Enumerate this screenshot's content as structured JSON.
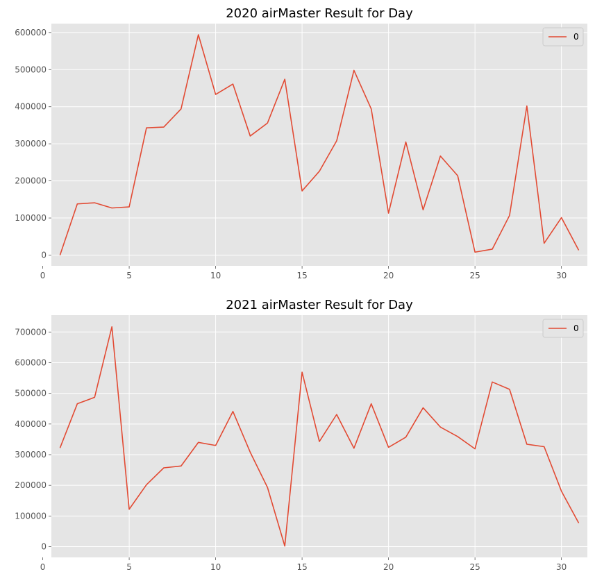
{
  "colors": {
    "series": "#E24A33",
    "plot_background": "#E5E5E5",
    "grid": "#FFFFFF"
  },
  "chart_data": [
    {
      "type": "line",
      "title": "2020 airMaster Result for Day",
      "xlabel": "",
      "ylabel": "",
      "xlim": [
        0.5,
        31.5
      ],
      "ylim": [
        -29000,
        624000
      ],
      "x_ticks": [
        0,
        5,
        10,
        15,
        20,
        25,
        30
      ],
      "y_ticks": [
        0,
        100000,
        200000,
        300000,
        400000,
        500000,
        600000
      ],
      "grid": true,
      "legend": {
        "position": "top-right",
        "entries": [
          "0"
        ]
      },
      "x": [
        1,
        2,
        3,
        4,
        5,
        6,
        7,
        8,
        9,
        10,
        11,
        12,
        13,
        14,
        15,
        16,
        17,
        18,
        19,
        20,
        21,
        22,
        23,
        24,
        25,
        26,
        27,
        28,
        29,
        30,
        31
      ],
      "series": [
        {
          "name": "0",
          "values": [
            0,
            138000,
            141000,
            127000,
            130000,
            343000,
            345000,
            394000,
            594000,
            433000,
            461000,
            321000,
            356000,
            474000,
            173000,
            226000,
            308000,
            498000,
            394000,
            113000,
            305000,
            122000,
            267000,
            214000,
            8000,
            16000,
            107000,
            402000,
            32000,
            101000,
            13000
          ]
        }
      ]
    },
    {
      "type": "line",
      "title": "2021 airMaster Result for Day",
      "xlabel": "",
      "ylabel": "",
      "xlim": [
        0.5,
        31.5
      ],
      "ylim": [
        -35000,
        755000
      ],
      "x_ticks": [
        0,
        5,
        10,
        15,
        20,
        25,
        30
      ],
      "y_ticks": [
        0,
        100000,
        200000,
        300000,
        400000,
        500000,
        600000,
        700000
      ],
      "grid": true,
      "legend": {
        "position": "top-right",
        "entries": [
          "0"
        ]
      },
      "x": [
        1,
        2,
        3,
        4,
        5,
        6,
        7,
        8,
        9,
        10,
        11,
        12,
        13,
        14,
        15,
        16,
        17,
        18,
        19,
        20,
        21,
        22,
        23,
        24,
        25,
        26,
        27,
        28,
        29,
        30,
        31
      ],
      "series": [
        {
          "name": "0",
          "values": [
            322000,
            466000,
            487000,
            717000,
            122000,
            202000,
            257000,
            263000,
            340000,
            330000,
            441000,
            308000,
            193000,
            2000,
            569000,
            343000,
            431000,
            321000,
            466000,
            324000,
            357000,
            453000,
            390000,
            359000,
            319000,
            537000,
            513000,
            334000,
            326000,
            181000,
            77000
          ]
        }
      ]
    }
  ]
}
